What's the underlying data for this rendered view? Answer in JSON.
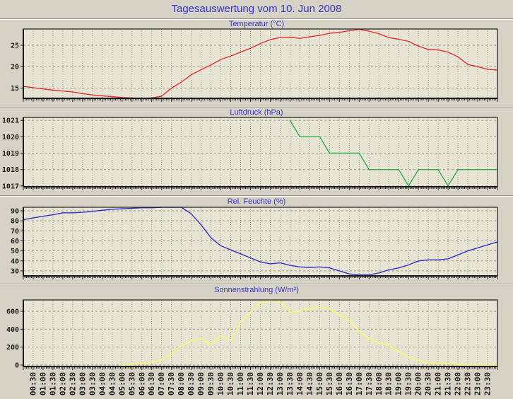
{
  "page": {
    "title": "Tagesauswertung vom 10. Jun 2008",
    "background": "#d6d2c6",
    "plot_background": "#e8e4d4",
    "title_color": "#3434cb",
    "grid_color": "#9a988c",
    "axis_color": "#1a1a1a"
  },
  "x_axis": {
    "range_hours": [
      0,
      24
    ],
    "label_interval_min": 30,
    "labels": [
      "00:30",
      "01:00",
      "01:30",
      "02:00",
      "02:30",
      "03:00",
      "03:30",
      "04:00",
      "04:30",
      "05:00",
      "05:30",
      "06:00",
      "06:30",
      "07:00",
      "07:30",
      "08:00",
      "08:30",
      "09:00",
      "09:30",
      "10:00",
      "10:30",
      "11:00",
      "11:30",
      "12:00",
      "12:30",
      "13:00",
      "13:30",
      "14:00",
      "14:30",
      "15:00",
      "15:30",
      "16:00",
      "16:30",
      "17:00",
      "17:30",
      "18:00",
      "18:30",
      "19:00",
      "19:30",
      "20:00",
      "20:30",
      "21:00",
      "21:30",
      "22:00",
      "22:30",
      "23:00",
      "23:30"
    ]
  },
  "chart_data": [
    {
      "type": "line",
      "title": "Temperatur (°C)",
      "color": "#e03131",
      "stroke_width": 1.4,
      "ylim": [
        12.6,
        28.8
      ],
      "yticks": [
        15,
        20,
        25
      ],
      "x_start_hour": 0,
      "x_step_hours": 0.5,
      "values": [
        15.4,
        15.1,
        14.8,
        14.5,
        14.3,
        14.1,
        13.7,
        13.4,
        13.2,
        13.0,
        12.8,
        12.7,
        12.6,
        12.7,
        13.1,
        15.0,
        16.4,
        18.1,
        19.3,
        20.4,
        21.7,
        22.5,
        23.4,
        24.3,
        25.4,
        26.3,
        26.8,
        26.9,
        26.6,
        27.0,
        27.3,
        27.8,
        28.0,
        28.4,
        28.7,
        28.3,
        27.7,
        26.8,
        26.4,
        25.9,
        24.8,
        24.0,
        23.9,
        23.4,
        22.3,
        20.5,
        20.0,
        19.4,
        19.2
      ]
    },
    {
      "type": "line",
      "title": "Luftdruck (hPa)",
      "color": "#2fae4a",
      "stroke_width": 1.4,
      "ylim": [
        1016.95,
        1021.18
      ],
      "yticks": [
        1017,
        1018,
        1019,
        1020,
        1021
      ],
      "x_start_hour": 13.5,
      "x_step_hours": 0.5,
      "values": [
        1021,
        1020,
        1020,
        1020,
        1019,
        1019,
        1019,
        1019,
        1018,
        1018,
        1018,
        1018,
        1017,
        1018,
        1018,
        1018,
        1017,
        1018,
        1018,
        1018,
        1018,
        1018
      ]
    },
    {
      "type": "line",
      "title": "Rel. Feuchte (%)",
      "color": "#3232c8",
      "stroke_width": 1.4,
      "ylim": [
        25,
        93.5
      ],
      "yticks": [
        30,
        40,
        50,
        60,
        70,
        80,
        90
      ],
      "x_start_hour": 0,
      "x_step_hours": 0.5,
      "values": [
        81,
        83,
        84.5,
        86,
        88,
        88,
        88.5,
        89.5,
        90.5,
        91.5,
        92,
        92.5,
        93,
        93,
        93.5,
        93.5,
        93.5,
        87,
        76,
        63,
        55,
        51,
        47,
        43,
        39,
        37,
        38,
        35.5,
        34,
        33.5,
        34,
        33,
        30,
        27,
        26,
        26,
        28,
        31,
        33,
        36,
        40,
        41,
        41,
        42,
        46,
        50,
        53,
        56,
        59
      ]
    },
    {
      "type": "line",
      "title": "Sonnenstrahlung (W/m²)",
      "color": "#f5f384",
      "stroke_width": 2,
      "ylim": [
        -16,
        726
      ],
      "yticks": [
        0,
        200,
        400,
        600
      ],
      "x_start_hour": 5,
      "x_step_hours": 0.5,
      "values": [
        3,
        8,
        18,
        30,
        55,
        120,
        215,
        270,
        295,
        230,
        330,
        270,
        480,
        580,
        700,
        725,
        710,
        590,
        600,
        635,
        640,
        630,
        560,
        500,
        380,
        290,
        250,
        220,
        150,
        90,
        50,
        25,
        20,
        15,
        5,
        2,
        1,
        0,
        0
      ]
    }
  ]
}
